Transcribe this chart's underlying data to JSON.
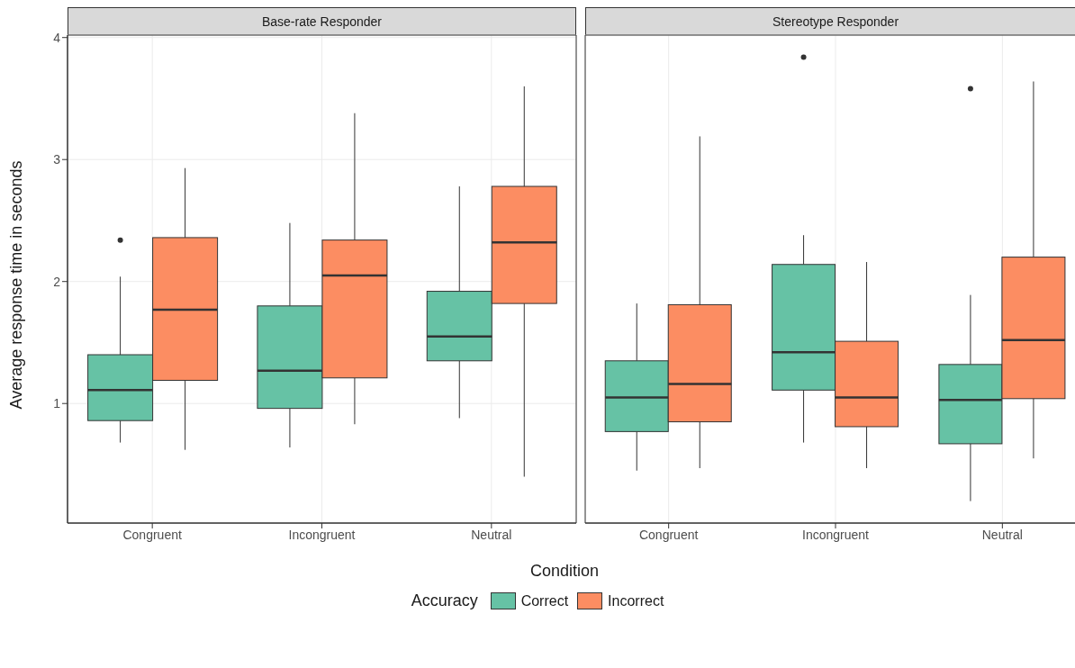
{
  "chart_data": [
    {
      "type": "box",
      "title": "Base-rate Responder",
      "xlabel": "Condition",
      "ylabel": "Average response time in seconds",
      "legend_title": "Accuracy",
      "legend": "bottom",
      "grid": true,
      "categories": [
        "Congruent",
        "Incongruent",
        "Neutral"
      ],
      "ylim": [
        0.02,
        4.02
      ],
      "yticks": [
        1,
        2,
        3,
        4
      ],
      "series": [
        {
          "name": "Correct",
          "color": "#66c2a5",
          "boxes": [
            {
              "low": 0.68,
              "q1": 0.86,
              "median": 1.11,
              "q3": 1.4,
              "high": 2.04,
              "outliers": [
                2.34
              ]
            },
            {
              "low": 0.64,
              "q1": 0.96,
              "median": 1.27,
              "q3": 1.8,
              "high": 2.48
            },
            {
              "low": 0.88,
              "q1": 1.35,
              "median": 1.55,
              "q3": 1.92,
              "high": 2.78
            }
          ]
        },
        {
          "name": "Incorrect",
          "color": "#fc8d62",
          "boxes": [
            {
              "low": 0.62,
              "q1": 1.19,
              "median": 1.77,
              "q3": 2.36,
              "high": 2.93
            },
            {
              "low": 0.83,
              "q1": 1.21,
              "median": 2.05,
              "q3": 2.34,
              "high": 3.38
            },
            {
              "low": 0.4,
              "q1": 1.82,
              "median": 2.32,
              "q3": 2.78,
              "high": 3.6
            }
          ]
        }
      ]
    },
    {
      "type": "box",
      "title": "Stereotype Responder",
      "grid": true,
      "tick_labels": "x",
      "categories": [
        "Congruent",
        "Incongruent",
        "Neutral"
      ],
      "ylim": [
        0.02,
        4.02
      ],
      "yticks": [
        1,
        2,
        3,
        4
      ],
      "series": [
        {
          "color": "#66c2a5",
          "boxes": [
            {
              "low": 0.45,
              "q1": 0.77,
              "median": 1.05,
              "q3": 1.35,
              "high": 1.82
            },
            {
              "low": 0.68,
              "q1": 1.11,
              "median": 1.42,
              "q3": 2.14,
              "high": 2.38,
              "outliers": [
                3.84
              ]
            },
            {
              "low": 0.2,
              "q1": 0.67,
              "median": 1.03,
              "q3": 1.32,
              "high": 1.89,
              "outliers": [
                3.58
              ]
            }
          ]
        },
        {
          "color": "#fc8d62",
          "boxes": [
            {
              "low": 0.47,
              "q1": 0.85,
              "median": 1.16,
              "q3": 1.81,
              "high": 3.19
            },
            {
              "low": 0.47,
              "q1": 0.81,
              "median": 1.05,
              "q3": 1.51,
              "high": 2.16
            },
            {
              "low": 0.55,
              "q1": 1.04,
              "median": 1.52,
              "q3": 2.2,
              "high": 3.64
            }
          ]
        }
      ]
    }
  ]
}
